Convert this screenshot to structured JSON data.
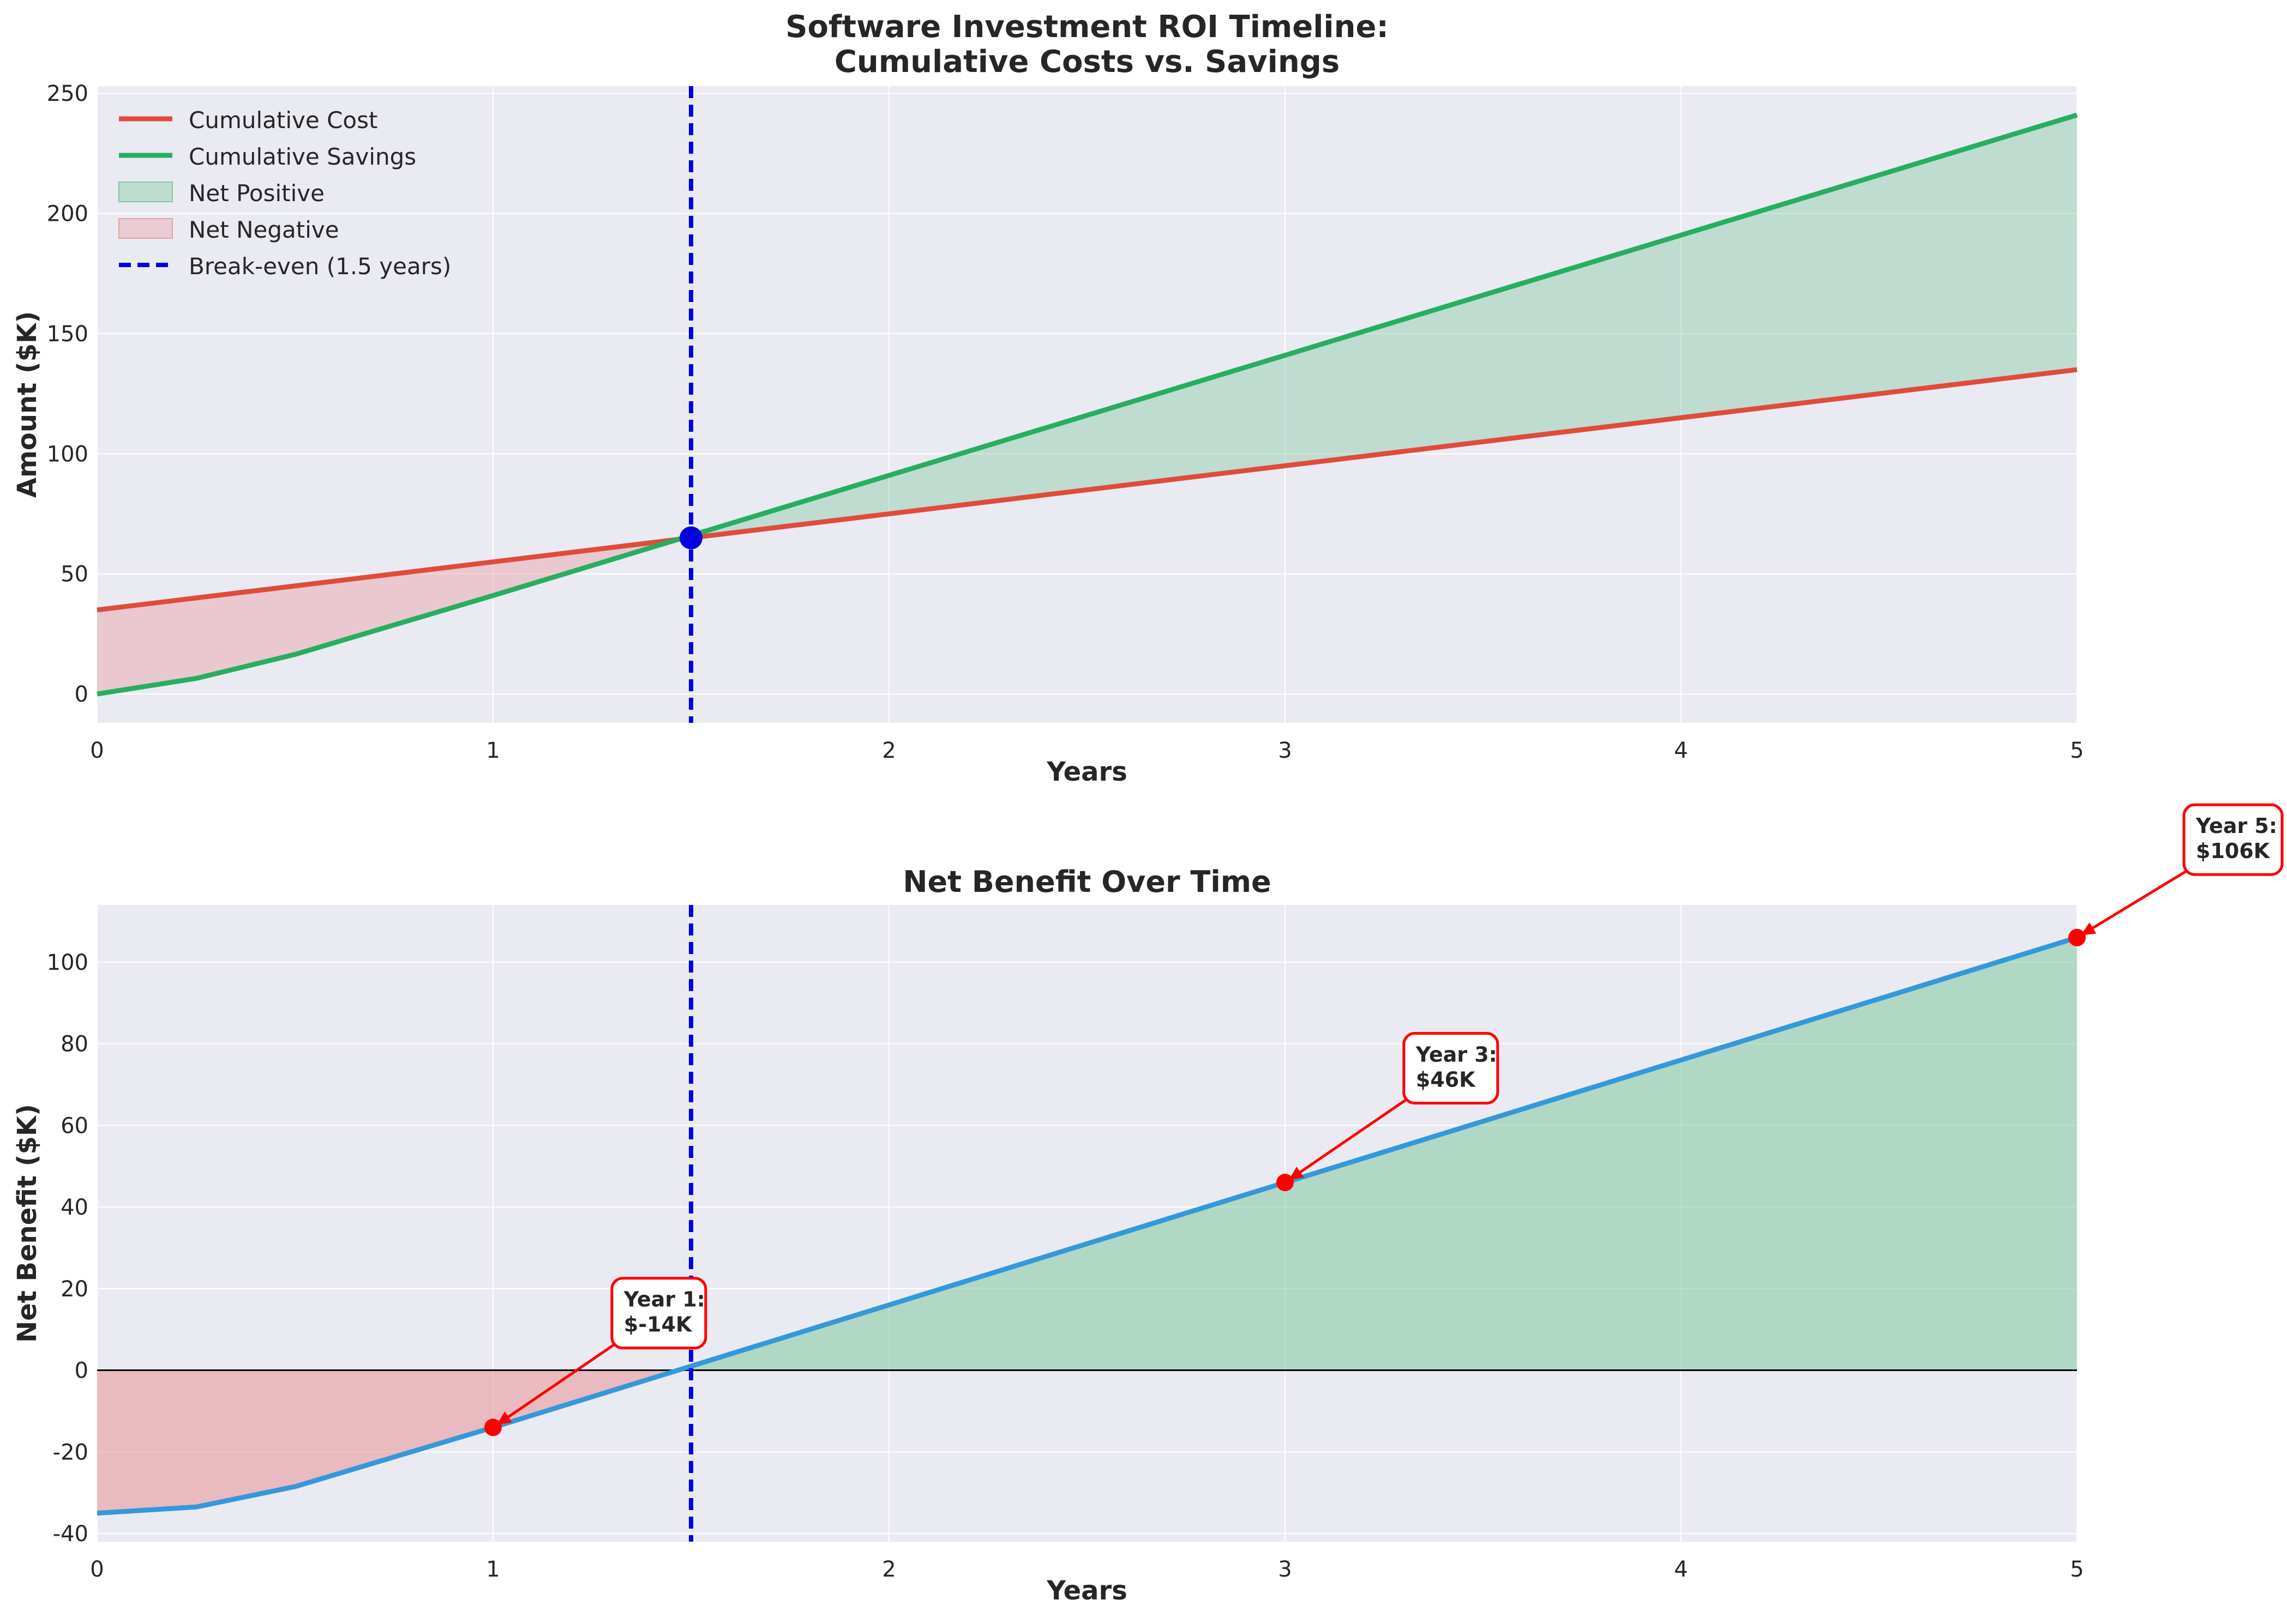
{
  "chart_data": [
    {
      "type": "line",
      "title_line1": "Software Investment ROI Timeline:",
      "title_line2": "Cumulative Costs vs. Savings",
      "xlabel": "Years",
      "ylabel": "Amount ($K)",
      "xlim": [
        0,
        5
      ],
      "ylim": [
        -12,
        253
      ],
      "xticks": [
        0,
        1,
        2,
        3,
        4,
        5
      ],
      "yticks": [
        0,
        50,
        100,
        150,
        200,
        250
      ],
      "grid": true,
      "legend_position": "upper-left",
      "x": [
        0,
        0.25,
        0.5,
        1,
        1.5,
        2,
        3,
        4,
        5
      ],
      "series": [
        {
          "name": "Cumulative Cost",
          "color": "#e04b3c",
          "values": [
            35,
            40,
            45,
            55,
            65,
            75,
            95,
            115,
            135
          ]
        },
        {
          "name": "Cumulative Savings",
          "color": "#27ae60",
          "values": [
            0,
            6.5,
            16.5,
            41,
            66,
            91,
            141,
            191,
            241
          ]
        }
      ],
      "fills": [
        {
          "name": "Net Positive",
          "color": "#7fc8a0"
        },
        {
          "name": "Net Negative",
          "color": "#e8a0a4"
        }
      ],
      "break_even": {
        "name": "Break-even (1.5 years)",
        "x": 1.5,
        "y": 65,
        "color": "#0000e0"
      }
    },
    {
      "type": "area",
      "title": "Net Benefit Over Time",
      "xlabel": "Years",
      "ylabel": "Net Benefit ($K)",
      "xlim": [
        0,
        5
      ],
      "ylim": [
        -42,
        114
      ],
      "xticks": [
        0,
        1,
        2,
        3,
        4,
        5
      ],
      "yticks": [
        -40,
        -20,
        0,
        20,
        40,
        60,
        80,
        100
      ],
      "grid": true,
      "x": [
        0,
        0.25,
        0.5,
        1,
        1.5,
        2,
        3,
        4,
        5
      ],
      "series": [
        {
          "name": "Net Benefit",
          "color": "#3498db",
          "values": [
            -35,
            -33.5,
            -28.5,
            -14,
            1,
            16,
            46,
            76,
            106
          ]
        }
      ],
      "fill_colors": {
        "positive": "#7fc8a0",
        "negative": "#e8a0a4"
      },
      "break_even_x": 1.5,
      "annotations": [
        {
          "x": 1,
          "y": -14,
          "line1": "Year 1:",
          "line2": "$-14K"
        },
        {
          "x": 3,
          "y": 46,
          "line1": "Year 3:",
          "line2": "$46K"
        },
        {
          "x": 5,
          "y": 106,
          "line1": "Year 5:",
          "line2": "$106K"
        }
      ]
    }
  ]
}
